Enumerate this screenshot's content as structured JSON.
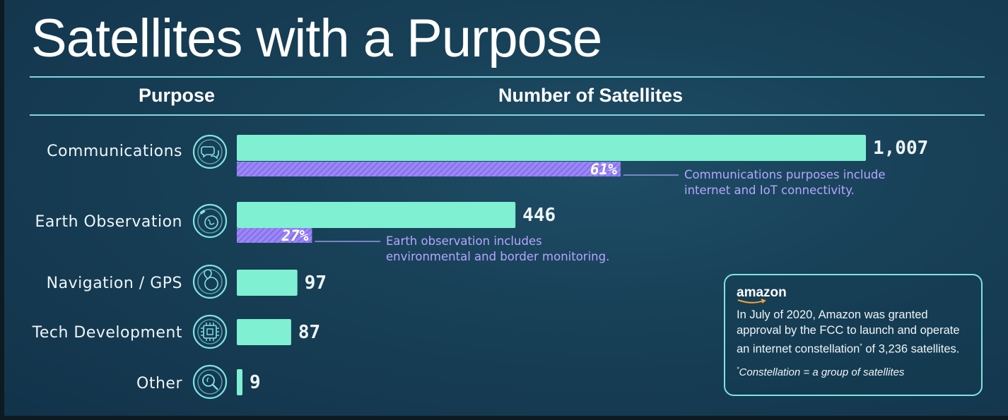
{
  "title": "Satellites with a Purpose",
  "headers": {
    "purpose": "Purpose",
    "number": "Number of Satellites"
  },
  "colors": {
    "bar": "#7ff0d2",
    "share": "#9b86f5",
    "ring": "#7fe3e0",
    "note": "#b6a6ff"
  },
  "chart_data": {
    "type": "bar",
    "orientation": "horizontal",
    "categories": [
      "Communications",
      "Earth Observation",
      "Navigation / GPS",
      "Tech Development",
      "Other"
    ],
    "values": [
      1007,
      446,
      97,
      87,
      9
    ],
    "value_labels": [
      "1,007",
      "446",
      "97",
      "87",
      "9"
    ],
    "icons": [
      "speech-bubbles-icon",
      "satellite-globe-icon",
      "location-globe-icon",
      "microchip-icon",
      "magnifier-icon"
    ],
    "shares": [
      {
        "category": "Communications",
        "percent": 61,
        "label": "61%",
        "note": [
          "Communications purposes include",
          "internet and IoT connectivity."
        ]
      },
      {
        "category": "Earth Observation",
        "percent": 27,
        "label": "27%",
        "note": [
          "Earth observation includes",
          "environmental and border monitoring."
        ]
      }
    ],
    "title": "Satellites with a Purpose",
    "xlabel": "Number of Satellites",
    "ylabel": "Purpose"
  },
  "callout": {
    "brand": "amazon",
    "text": "In July of 2020, Amazon was granted approval by the FCC to launch and operate an internet constellation",
    "text_mark": "*",
    "text_end": " of 3,236 satellites.",
    "footnote_mark": "*",
    "footnote": "Constellation = a group of satellites"
  }
}
